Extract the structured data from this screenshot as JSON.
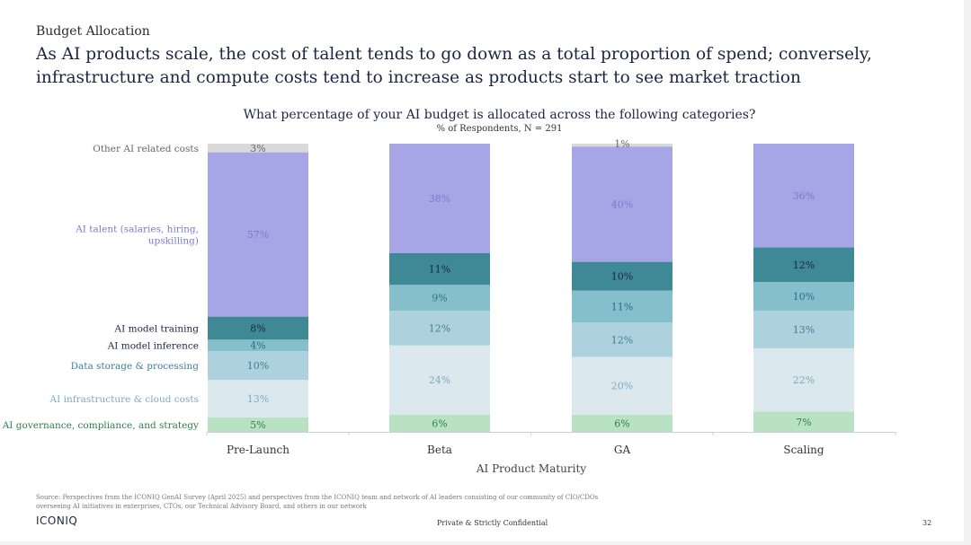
{
  "header": {
    "eyebrow": "Budget Allocation",
    "headline": "As AI products scale, the cost of talent tends to go down as a total proportion of spend; conversely, infrastructure and compute costs tend to increase as products start to see market traction"
  },
  "chart_data": {
    "type": "bar",
    "stacked": true,
    "title": "What percentage of your AI budget is allocated across the following categories?",
    "subtitle": "% of Respondents, N = 291",
    "xlabel": "AI Product Maturity",
    "ylabel": "",
    "ylim": [
      0,
      100
    ],
    "grid": false,
    "legend": "left",
    "categories": [
      "Pre-Launch",
      "Beta",
      "GA",
      "Scaling"
    ],
    "series": [
      {
        "name": "AI governance, compliance, and strategy",
        "values": [
          5,
          6,
          6,
          7
        ],
        "labels": [
          "5%",
          "6%",
          "6%",
          "7%"
        ],
        "color": "#b9e2c5",
        "label_color": "#2e7d4f"
      },
      {
        "name": "AI infrastructure & cloud costs",
        "values": [
          13,
          24,
          20,
          22
        ],
        "labels": [
          "13%",
          "24%",
          "20%",
          "22%"
        ],
        "color": "#dbe9ef",
        "label_color": "#7fa8bf"
      },
      {
        "name": "Data storage & processing",
        "values": [
          10,
          12,
          12,
          13
        ],
        "labels": [
          "10%",
          "12%",
          "12%",
          "13%"
        ],
        "color": "#aed2dd",
        "label_color": "#3f7f95"
      },
      {
        "name": "AI model inference",
        "values": [
          4,
          9,
          11,
          10
        ],
        "labels": [
          "4%",
          "9%",
          "11%",
          "10%"
        ],
        "color": "#85bfcc",
        "label_color": "#2f6f80"
      },
      {
        "name": "AI model training",
        "values": [
          8,
          11,
          10,
          12
        ],
        "labels": [
          "8%",
          "11%",
          "10%",
          "12%"
        ],
        "color": "#3f8895",
        "label_color": "#1b2642"
      },
      {
        "name": "AI talent (salaries, hiring, upskilling)",
        "values": [
          57,
          38,
          40,
          36
        ],
        "labels": [
          "57%",
          "38%",
          "40%",
          "36%"
        ],
        "color": "#a6a6e6",
        "label_color": "#7a7acc"
      },
      {
        "name": "Other AI related costs",
        "values": [
          3,
          0,
          1,
          0
        ],
        "labels": [
          "3%",
          "",
          "1%",
          ""
        ],
        "color": "#d9d9d9",
        "label_color": "#666666"
      }
    ]
  },
  "footer": {
    "source": "Source: Perspectives from the ICONIQ GenAI Survey (April 2025) and perspectives from the ICONIQ team and network of AI leaders consisting of our community of CIO/CDOs overseeing AI initiatives in enterprises, CTOs, our Technical Advisory Board, and others in our network",
    "logo": "ICONIQ",
    "confidential": "Private & Strictly Confidential",
    "page_number": "32"
  }
}
